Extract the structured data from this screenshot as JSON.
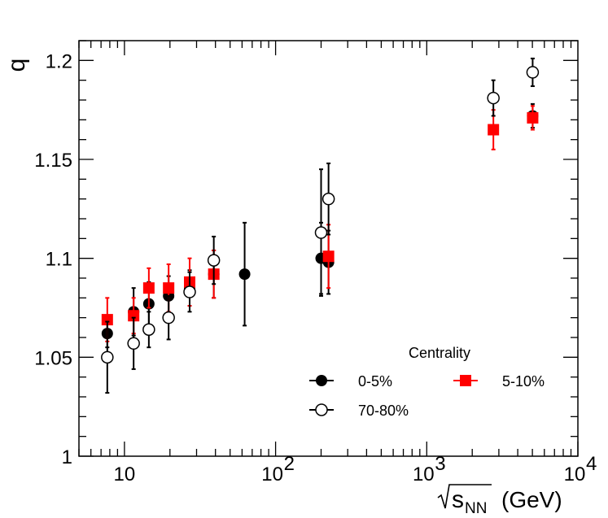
{
  "chart_data": {
    "type": "scatter",
    "x_scale": "log",
    "xlim": [
      5,
      10000
    ],
    "ylim": [
      1.0,
      1.21
    ],
    "ylabel": "q",
    "xlabel_base": "s",
    "xlabel_sub": "NN",
    "xlabel_unit": "(GeV)",
    "x_ticks": [
      {
        "value": 10,
        "label": "10",
        "base": "",
        "exp": ""
      },
      {
        "value": 100,
        "label": "",
        "base": "10",
        "exp": "2"
      },
      {
        "value": 1000,
        "label": "",
        "base": "10",
        "exp": "3"
      },
      {
        "value": 10000,
        "label": "",
        "base": "10",
        "exp": "4"
      }
    ],
    "y_ticks": [
      {
        "value": 1.0,
        "label": "1"
      },
      {
        "value": 1.05,
        "label": "1.05"
      },
      {
        "value": 1.1,
        "label": "1.1"
      },
      {
        "value": 1.15,
        "label": "1.15"
      },
      {
        "value": 1.2,
        "label": "1.2"
      }
    ],
    "legend": {
      "title": "Centrality",
      "placement": "bottom-right"
    },
    "series": [
      {
        "name": "0-5%",
        "marker": "filled-circle",
        "color": "#000000",
        "points": [
          {
            "x": 7.7,
            "y": 1.062,
            "err": 0.007
          },
          {
            "x": 11.5,
            "y": 1.073,
            "err": 0.012
          },
          {
            "x": 14.5,
            "y": 1.077,
            "err": 0.011
          },
          {
            "x": 19.6,
            "y": 1.081,
            "err": 0.01
          },
          {
            "x": 27,
            "y": 1.085,
            "err": 0.009
          },
          {
            "x": 39,
            "y": 1.092,
            "err": 0.012
          },
          {
            "x": 62.4,
            "y": 1.092,
            "err": 0.026
          },
          {
            "x": 200,
            "y": 1.1,
            "err": 0.018
          },
          {
            "x": 224,
            "y": 1.098,
            "err": 0.016
          },
          {
            "x": 5020,
            "y": 1.172,
            "err": 0.006
          }
        ]
      },
      {
        "name": "5-10%",
        "marker": "filled-square",
        "color": "#ff0000",
        "points": [
          {
            "x": 7.7,
            "y": 1.069,
            "err": 0.011
          },
          {
            "x": 11.5,
            "y": 1.071,
            "err": 0.009
          },
          {
            "x": 14.5,
            "y": 1.085,
            "err": 0.01
          },
          {
            "x": 19.6,
            "y": 1.085,
            "err": 0.012
          },
          {
            "x": 27,
            "y": 1.088,
            "err": 0.012
          },
          {
            "x": 39,
            "y": 1.092,
            "err": 0.012
          },
          {
            "x": 224,
            "y": 1.101,
            "err": 0.016
          },
          {
            "x": 2760,
            "y": 1.165,
            "err": 0.01
          },
          {
            "x": 5020,
            "y": 1.171,
            "err": 0.006
          }
        ]
      },
      {
        "name": "70-80%",
        "marker": "open-circle",
        "color": "#000000",
        "points": [
          {
            "x": 7.7,
            "y": 1.05,
            "err": 0.018
          },
          {
            "x": 11.5,
            "y": 1.057,
            "err": 0.013
          },
          {
            "x": 14.5,
            "y": 1.064,
            "err": 0.009
          },
          {
            "x": 19.6,
            "y": 1.07,
            "err": 0.011
          },
          {
            "x": 27,
            "y": 1.083,
            "err": 0.01
          },
          {
            "x": 39,
            "y": 1.099,
            "err": 0.012
          },
          {
            "x": 200,
            "y": 1.113,
            "err": 0.032
          },
          {
            "x": 224,
            "y": 1.13,
            "err": 0.018
          },
          {
            "x": 2760,
            "y": 1.181,
            "err": 0.009
          },
          {
            "x": 5020,
            "y": 1.194,
            "err": 0.007
          }
        ]
      }
    ]
  }
}
